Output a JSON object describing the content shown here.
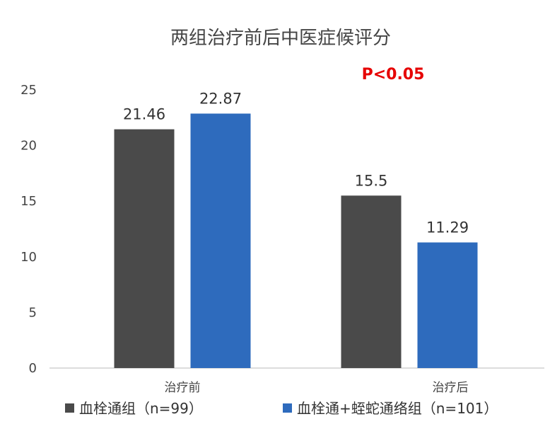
{
  "chart_data": {
    "type": "bar",
    "title": "两组治疗前后中医症候评分",
    "annotation": "P<0.05",
    "categories": [
      "治疗前",
      "治疗后"
    ],
    "series": [
      {
        "name": "血栓通组（n=99）",
        "values": [
          21.46,
          15.5
        ],
        "labels": [
          "21.46",
          "15.5"
        ],
        "color": "#4a4a4a"
      },
      {
        "name": "血栓通+蛭蛇通络组（n=101）",
        "values": [
          22.87,
          11.29
        ],
        "labels": [
          "22.87",
          "11.29"
        ],
        "color": "#2e6bbd"
      }
    ],
    "ylim": [
      0,
      25
    ],
    "yticks": [
      "0",
      "5",
      "10",
      "15",
      "20",
      "25"
    ],
    "grid": false,
    "legend_position": "bottom",
    "xlabel": "",
    "ylabel": ""
  }
}
